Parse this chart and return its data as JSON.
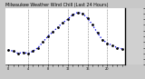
{
  "title": "Milwaukee Weather Wind Chill (Last 24 Hours)",
  "title_fontsize": 3.5,
  "title_color": "#000000",
  "line_color": "#0000ee",
  "line_style": "dotted",
  "line_width": 0.9,
  "marker": ".",
  "marker_size": 2.0,
  "marker_color": "#000000",
  "background_color": "#c8c8c8",
  "plot_bg_color": "#ffffff",
  "grid_color": "#888888",
  "grid_style": "--",
  "ylim": [
    -10,
    40
  ],
  "yticks": [
    -10,
    -5,
    0,
    5,
    10,
    15,
    20,
    25,
    30,
    35,
    40
  ],
  "ytick_fontsize": 2.8,
  "xtick_fontsize": 2.5,
  "x_values": [
    0,
    1,
    2,
    3,
    4,
    5,
    6,
    7,
    8,
    9,
    10,
    11,
    12,
    13,
    14,
    15,
    16,
    17,
    18,
    19,
    20,
    21,
    22,
    23
  ],
  "y_values": [
    3,
    2,
    0,
    1,
    0,
    2,
    5,
    10,
    15,
    19,
    23,
    27,
    30,
    34,
    36,
    35,
    31,
    25,
    18,
    12,
    9,
    7,
    5,
    4
  ],
  "vgrid_positions": [
    4,
    8,
    12,
    16,
    20
  ],
  "right_panel_bg": "#d0d0d0",
  "right_axis_line_color": "#000000",
  "spine_color": "#000000"
}
